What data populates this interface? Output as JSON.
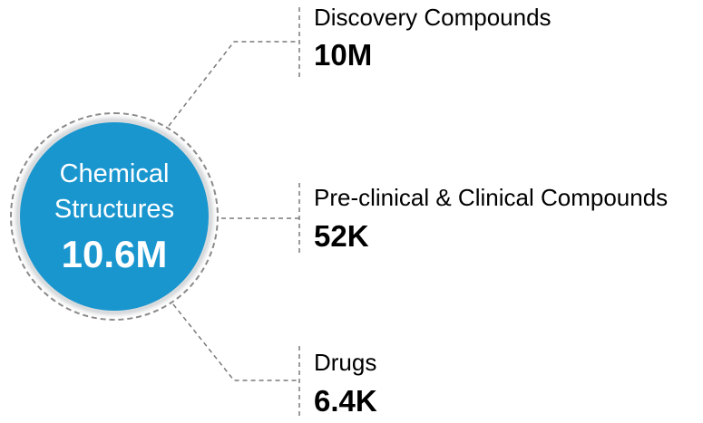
{
  "hub": {
    "line1": "Chemical",
    "line2": "Structures",
    "value": "10.6M",
    "color": "#1a96cf"
  },
  "branches": [
    {
      "label": "Discovery Compounds",
      "value": "10M"
    },
    {
      "label": "Pre-clinical & Clinical Compounds",
      "value": "52K"
    },
    {
      "label": "Drugs",
      "value": "6.4K"
    }
  ]
}
